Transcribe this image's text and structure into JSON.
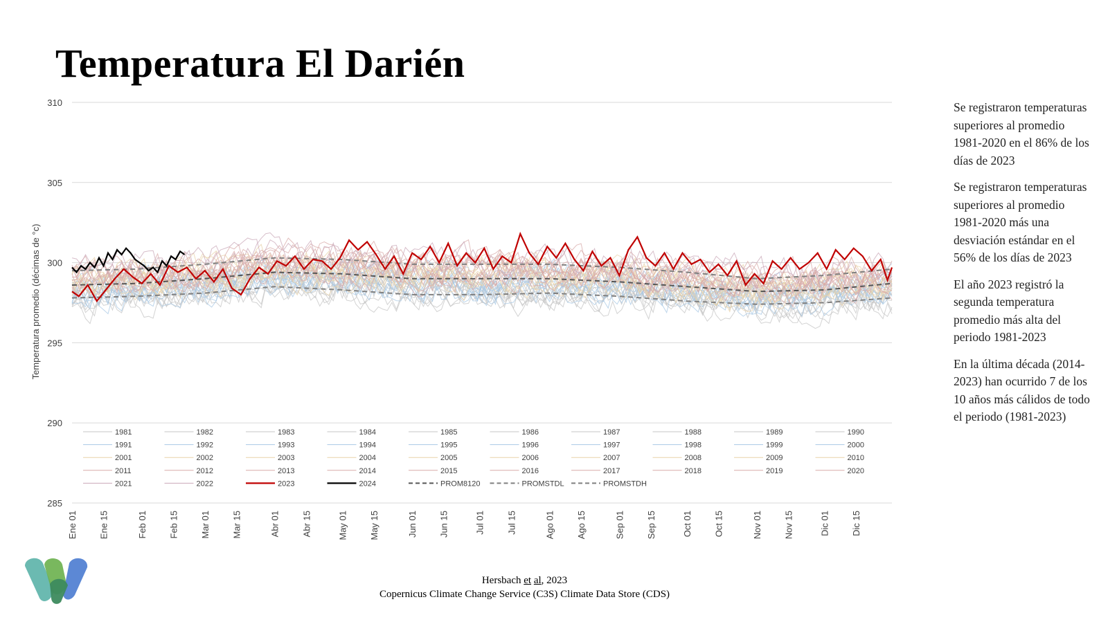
{
  "title": "Temperatura El Darién",
  "notes": [
    "Se registraron temperaturas superiores al promedio 1981-2020 en el 86% de los días de 2023",
    "Se registraron temperaturas superiores al promedio 1981-2020 más una desviación estándar en el 56% de los días de 2023",
    "El año 2023 registró la segunda temperatura promedio más alta del periodo 1981-2023",
    "En la última década (2014-2023) han ocurrido 7 de los 10 años más cálidos de todo el periodo (1981-2023)"
  ],
  "source": {
    "line1_pre": "Hersbach ",
    "line1_et": "et",
    "line1_al": "al",
    "line1_post": ", 2023",
    "line2": "Copernicus Climate Change Service (C3S) Climate Data Store (CDS)"
  },
  "logo": {
    "colors": [
      "#5bb3a8",
      "#6ab04c",
      "#4a7bd0",
      "#3d8a5e"
    ]
  },
  "chart_data": {
    "type": "line",
    "title": "",
    "xlabel": "",
    "ylabel": "Temperatura promedio (décimas de °c)",
    "ylim": [
      285,
      310
    ],
    "yticks": [
      285,
      290,
      295,
      300,
      305,
      310
    ],
    "xlim_day": [
      1,
      365
    ],
    "xticks": [
      {
        "label": "Ene 01",
        "day": 1
      },
      {
        "label": "Ene 15",
        "day": 15
      },
      {
        "label": "Feb 01",
        "day": 32
      },
      {
        "label": "Feb 15",
        "day": 46
      },
      {
        "label": "Mar 01",
        "day": 60
      },
      {
        "label": "Mar 15",
        "day": 74
      },
      {
        "label": "Abr 01",
        "day": 91
      },
      {
        "label": "Abr 15",
        "day": 105
      },
      {
        "label": "May 01",
        "day": 121
      },
      {
        "label": "May 15",
        "day": 135
      },
      {
        "label": "Jun 01",
        "day": 152
      },
      {
        "label": "Jun 15",
        "day": 166
      },
      {
        "label": "Jul 01",
        "day": 182
      },
      {
        "label": "Jul 15",
        "day": 196
      },
      {
        "label": "Ago 01",
        "day": 213
      },
      {
        "label": "Ago 15",
        "day": 227
      },
      {
        "label": "Sep 01",
        "day": 244
      },
      {
        "label": "Sep 15",
        "day": 258
      },
      {
        "label": "Oct 01",
        "day": 274
      },
      {
        "label": "Oct 15",
        "day": 288
      },
      {
        "label": "Nov 01",
        "day": 305
      },
      {
        "label": "Nov 15",
        "day": 319
      },
      {
        "label": "Dic 01",
        "day": 335
      },
      {
        "label": "Dic 15",
        "day": 349
      }
    ],
    "grid": true,
    "legend_position": "bottom-inside",
    "legend": [
      "1981",
      "1982",
      "1983",
      "1984",
      "1985",
      "1986",
      "1987",
      "1988",
      "1989",
      "1990",
      "1991",
      "1992",
      "1993",
      "1994",
      "1995",
      "1996",
      "1997",
      "1998",
      "1999",
      "2000",
      "2001",
      "2002",
      "2003",
      "2004",
      "2005",
      "2006",
      "2007",
      "2008",
      "2009",
      "2010",
      "2011",
      "2012",
      "2013",
      "2014",
      "2015",
      "2016",
      "2017",
      "2018",
      "2019",
      "2020",
      "2021",
      "2022",
      "2023",
      "2024",
      "PROM8120",
      "PROMSTDL",
      "PROMSTDH"
    ],
    "colors": {
      "c1980s": "#c4c4c4",
      "c1990s": "#a8c8e4",
      "c2000s": "#e8d2a8",
      "c2010s": "#d8aaa8",
      "c2020s": "#c9a8b8",
      "y2023": "#c00000",
      "y2024": "#000000",
      "prom": "#555555",
      "std": "#7f7f7f"
    },
    "series": [
      {
        "name": "2023",
        "color": "#c00000",
        "points": [
          [
            1,
            298.2
          ],
          [
            4,
            297.9
          ],
          [
            8,
            298.6
          ],
          [
            12,
            297.6
          ],
          [
            16,
            298.3
          ],
          [
            20,
            299.0
          ],
          [
            24,
            299.6
          ],
          [
            28,
            299.1
          ],
          [
            32,
            298.7
          ],
          [
            36,
            299.3
          ],
          [
            40,
            298.6
          ],
          [
            44,
            299.8
          ],
          [
            48,
            299.4
          ],
          [
            52,
            299.7
          ],
          [
            56,
            299.0
          ],
          [
            60,
            299.5
          ],
          [
            64,
            298.8
          ],
          [
            68,
            299.6
          ],
          [
            72,
            298.4
          ],
          [
            76,
            298.0
          ],
          [
            80,
            299.0
          ],
          [
            84,
            299.7
          ],
          [
            88,
            299.3
          ],
          [
            92,
            300.1
          ],
          [
            96,
            299.8
          ],
          [
            100,
            300.4
          ],
          [
            104,
            299.6
          ],
          [
            108,
            300.2
          ],
          [
            112,
            300.1
          ],
          [
            116,
            299.6
          ],
          [
            120,
            300.3
          ],
          [
            124,
            301.4
          ],
          [
            128,
            300.8
          ],
          [
            132,
            301.3
          ],
          [
            136,
            300.5
          ],
          [
            140,
            299.6
          ],
          [
            144,
            300.4
          ],
          [
            148,
            299.3
          ],
          [
            152,
            300.6
          ],
          [
            156,
            300.2
          ],
          [
            160,
            301.0
          ],
          [
            164,
            300.0
          ],
          [
            168,
            301.2
          ],
          [
            172,
            299.8
          ],
          [
            176,
            300.6
          ],
          [
            180,
            300.0
          ],
          [
            184,
            300.9
          ],
          [
            188,
            299.6
          ],
          [
            192,
            300.4
          ],
          [
            196,
            300.0
          ],
          [
            200,
            301.8
          ],
          [
            204,
            300.6
          ],
          [
            208,
            299.9
          ],
          [
            212,
            301.0
          ],
          [
            216,
            300.3
          ],
          [
            220,
            301.2
          ],
          [
            224,
            300.2
          ],
          [
            228,
            299.5
          ],
          [
            232,
            300.7
          ],
          [
            236,
            299.8
          ],
          [
            240,
            300.3
          ],
          [
            244,
            299.2
          ],
          [
            248,
            300.8
          ],
          [
            252,
            301.6
          ],
          [
            256,
            300.3
          ],
          [
            260,
            299.8
          ],
          [
            264,
            300.6
          ],
          [
            268,
            299.6
          ],
          [
            272,
            300.6
          ],
          [
            276,
            299.9
          ],
          [
            280,
            300.2
          ],
          [
            284,
            299.4
          ],
          [
            288,
            299.9
          ],
          [
            292,
            299.2
          ],
          [
            296,
            300.1
          ],
          [
            300,
            298.6
          ],
          [
            304,
            299.3
          ],
          [
            308,
            298.7
          ],
          [
            312,
            300.1
          ],
          [
            316,
            299.6
          ],
          [
            320,
            300.3
          ],
          [
            324,
            299.6
          ],
          [
            328,
            300.0
          ],
          [
            332,
            300.6
          ],
          [
            336,
            299.6
          ],
          [
            340,
            300.8
          ],
          [
            344,
            300.2
          ],
          [
            348,
            300.9
          ],
          [
            352,
            300.4
          ],
          [
            356,
            299.5
          ],
          [
            360,
            300.2
          ],
          [
            363,
            298.9
          ],
          [
            365,
            299.7
          ]
        ]
      },
      {
        "name": "2024",
        "color": "#000000",
        "points": [
          [
            1,
            299.7
          ],
          [
            3,
            299.4
          ],
          [
            5,
            299.8
          ],
          [
            7,
            299.6
          ],
          [
            9,
            300.0
          ],
          [
            11,
            299.7
          ],
          [
            13,
            300.3
          ],
          [
            15,
            299.8
          ],
          [
            17,
            300.6
          ],
          [
            19,
            300.2
          ],
          [
            21,
            300.8
          ],
          [
            23,
            300.5
          ],
          [
            25,
            300.9
          ],
          [
            27,
            300.6
          ],
          [
            29,
            300.2
          ],
          [
            31,
            300.0
          ],
          [
            33,
            299.8
          ],
          [
            35,
            299.5
          ],
          [
            37,
            299.7
          ],
          [
            39,
            299.4
          ],
          [
            41,
            300.1
          ],
          [
            43,
            299.8
          ],
          [
            45,
            300.4
          ],
          [
            47,
            300.2
          ],
          [
            49,
            300.7
          ],
          [
            51,
            300.5
          ]
        ]
      },
      {
        "name": "PROM8120",
        "color": "#555555",
        "dash": "dashed",
        "points": [
          [
            1,
            298.6
          ],
          [
            30,
            298.7
          ],
          [
            60,
            299.0
          ],
          [
            91,
            299.4
          ],
          [
            121,
            299.3
          ],
          [
            152,
            299.0
          ],
          [
            182,
            299.0
          ],
          [
            213,
            299.0
          ],
          [
            244,
            298.8
          ],
          [
            274,
            298.5
          ],
          [
            305,
            298.2
          ],
          [
            335,
            298.3
          ],
          [
            365,
            298.7
          ]
        ]
      },
      {
        "name": "PROMSTDL",
        "color": "#7f7f7f",
        "dash": "dashed",
        "points": [
          [
            1,
            297.8
          ],
          [
            30,
            297.9
          ],
          [
            60,
            298.1
          ],
          [
            91,
            298.5
          ],
          [
            121,
            298.3
          ],
          [
            152,
            298.0
          ],
          [
            182,
            298.0
          ],
          [
            213,
            298.1
          ],
          [
            244,
            297.9
          ],
          [
            274,
            297.6
          ],
          [
            305,
            297.4
          ],
          [
            335,
            297.5
          ],
          [
            365,
            297.8
          ]
        ]
      },
      {
        "name": "PROMSTDH",
        "color": "#7f7f7f",
        "dash": "dashed",
        "points": [
          [
            1,
            299.5
          ],
          [
            30,
            299.6
          ],
          [
            60,
            299.9
          ],
          [
            91,
            300.3
          ],
          [
            121,
            300.2
          ],
          [
            152,
            299.9
          ],
          [
            182,
            299.9
          ],
          [
            213,
            299.9
          ],
          [
            244,
            299.7
          ],
          [
            274,
            299.4
          ],
          [
            305,
            299.0
          ],
          [
            335,
            299.2
          ],
          [
            365,
            299.6
          ]
        ]
      }
    ]
  }
}
